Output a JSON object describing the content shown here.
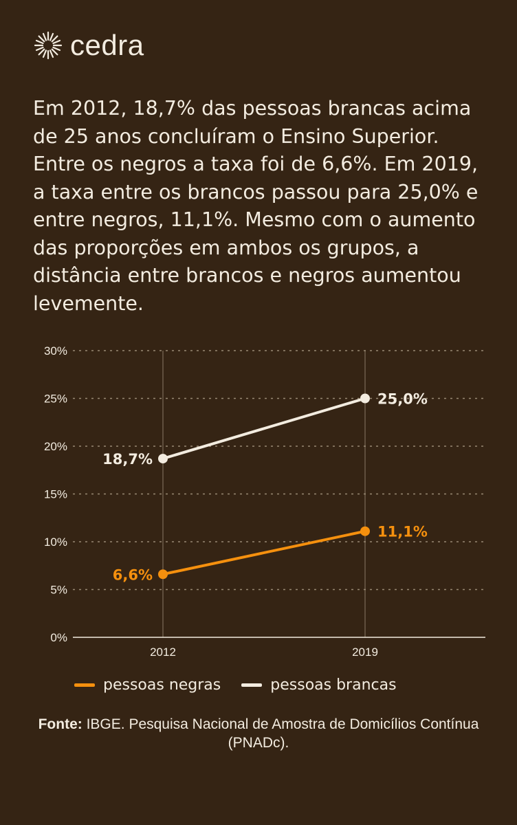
{
  "brand": {
    "name": "cedra",
    "icon": "sun-icon"
  },
  "intro_text": "Em 2012, 18,7% das pessoas brancas acima de 25 anos concluíram o Ensino Superior. Entre os negros a taxa foi de 6,6%. Em 2019, a taxa entre os brancos passou para 25,0% e entre negros, 11,1%. Mesmo com o aumento das proporções em ambos os grupos, a distância entre brancos e negros aumentou levemente.",
  "chart_data": {
    "type": "line",
    "x": [
      "2012",
      "2019"
    ],
    "ylim": [
      0,
      30
    ],
    "yticks": [
      0,
      5,
      10,
      15,
      20,
      25,
      30
    ],
    "ytick_labels": [
      "0%",
      "5%",
      "10%",
      "15%",
      "20%",
      "25%",
      "30%"
    ],
    "grid": true,
    "series": [
      {
        "name": "pessoas negras",
        "color": "#f5900e",
        "values": [
          6.6,
          11.1
        ],
        "labels": [
          "6,6%",
          "11,1%"
        ]
      },
      {
        "name": "pessoas brancas",
        "color": "#f3ece0",
        "values": [
          18.7,
          25.0
        ],
        "labels": [
          "18,7%",
          "25,0%"
        ]
      }
    ],
    "legend_position": "bottom"
  },
  "source": {
    "label": "Fonte:",
    "text": "IBGE. Pesquisa Nacional de Amostra de Domicílios Contínua (PNADc)."
  },
  "colors": {
    "background": "#352414",
    "text": "#f3ece0",
    "accent": "#f5900e"
  }
}
